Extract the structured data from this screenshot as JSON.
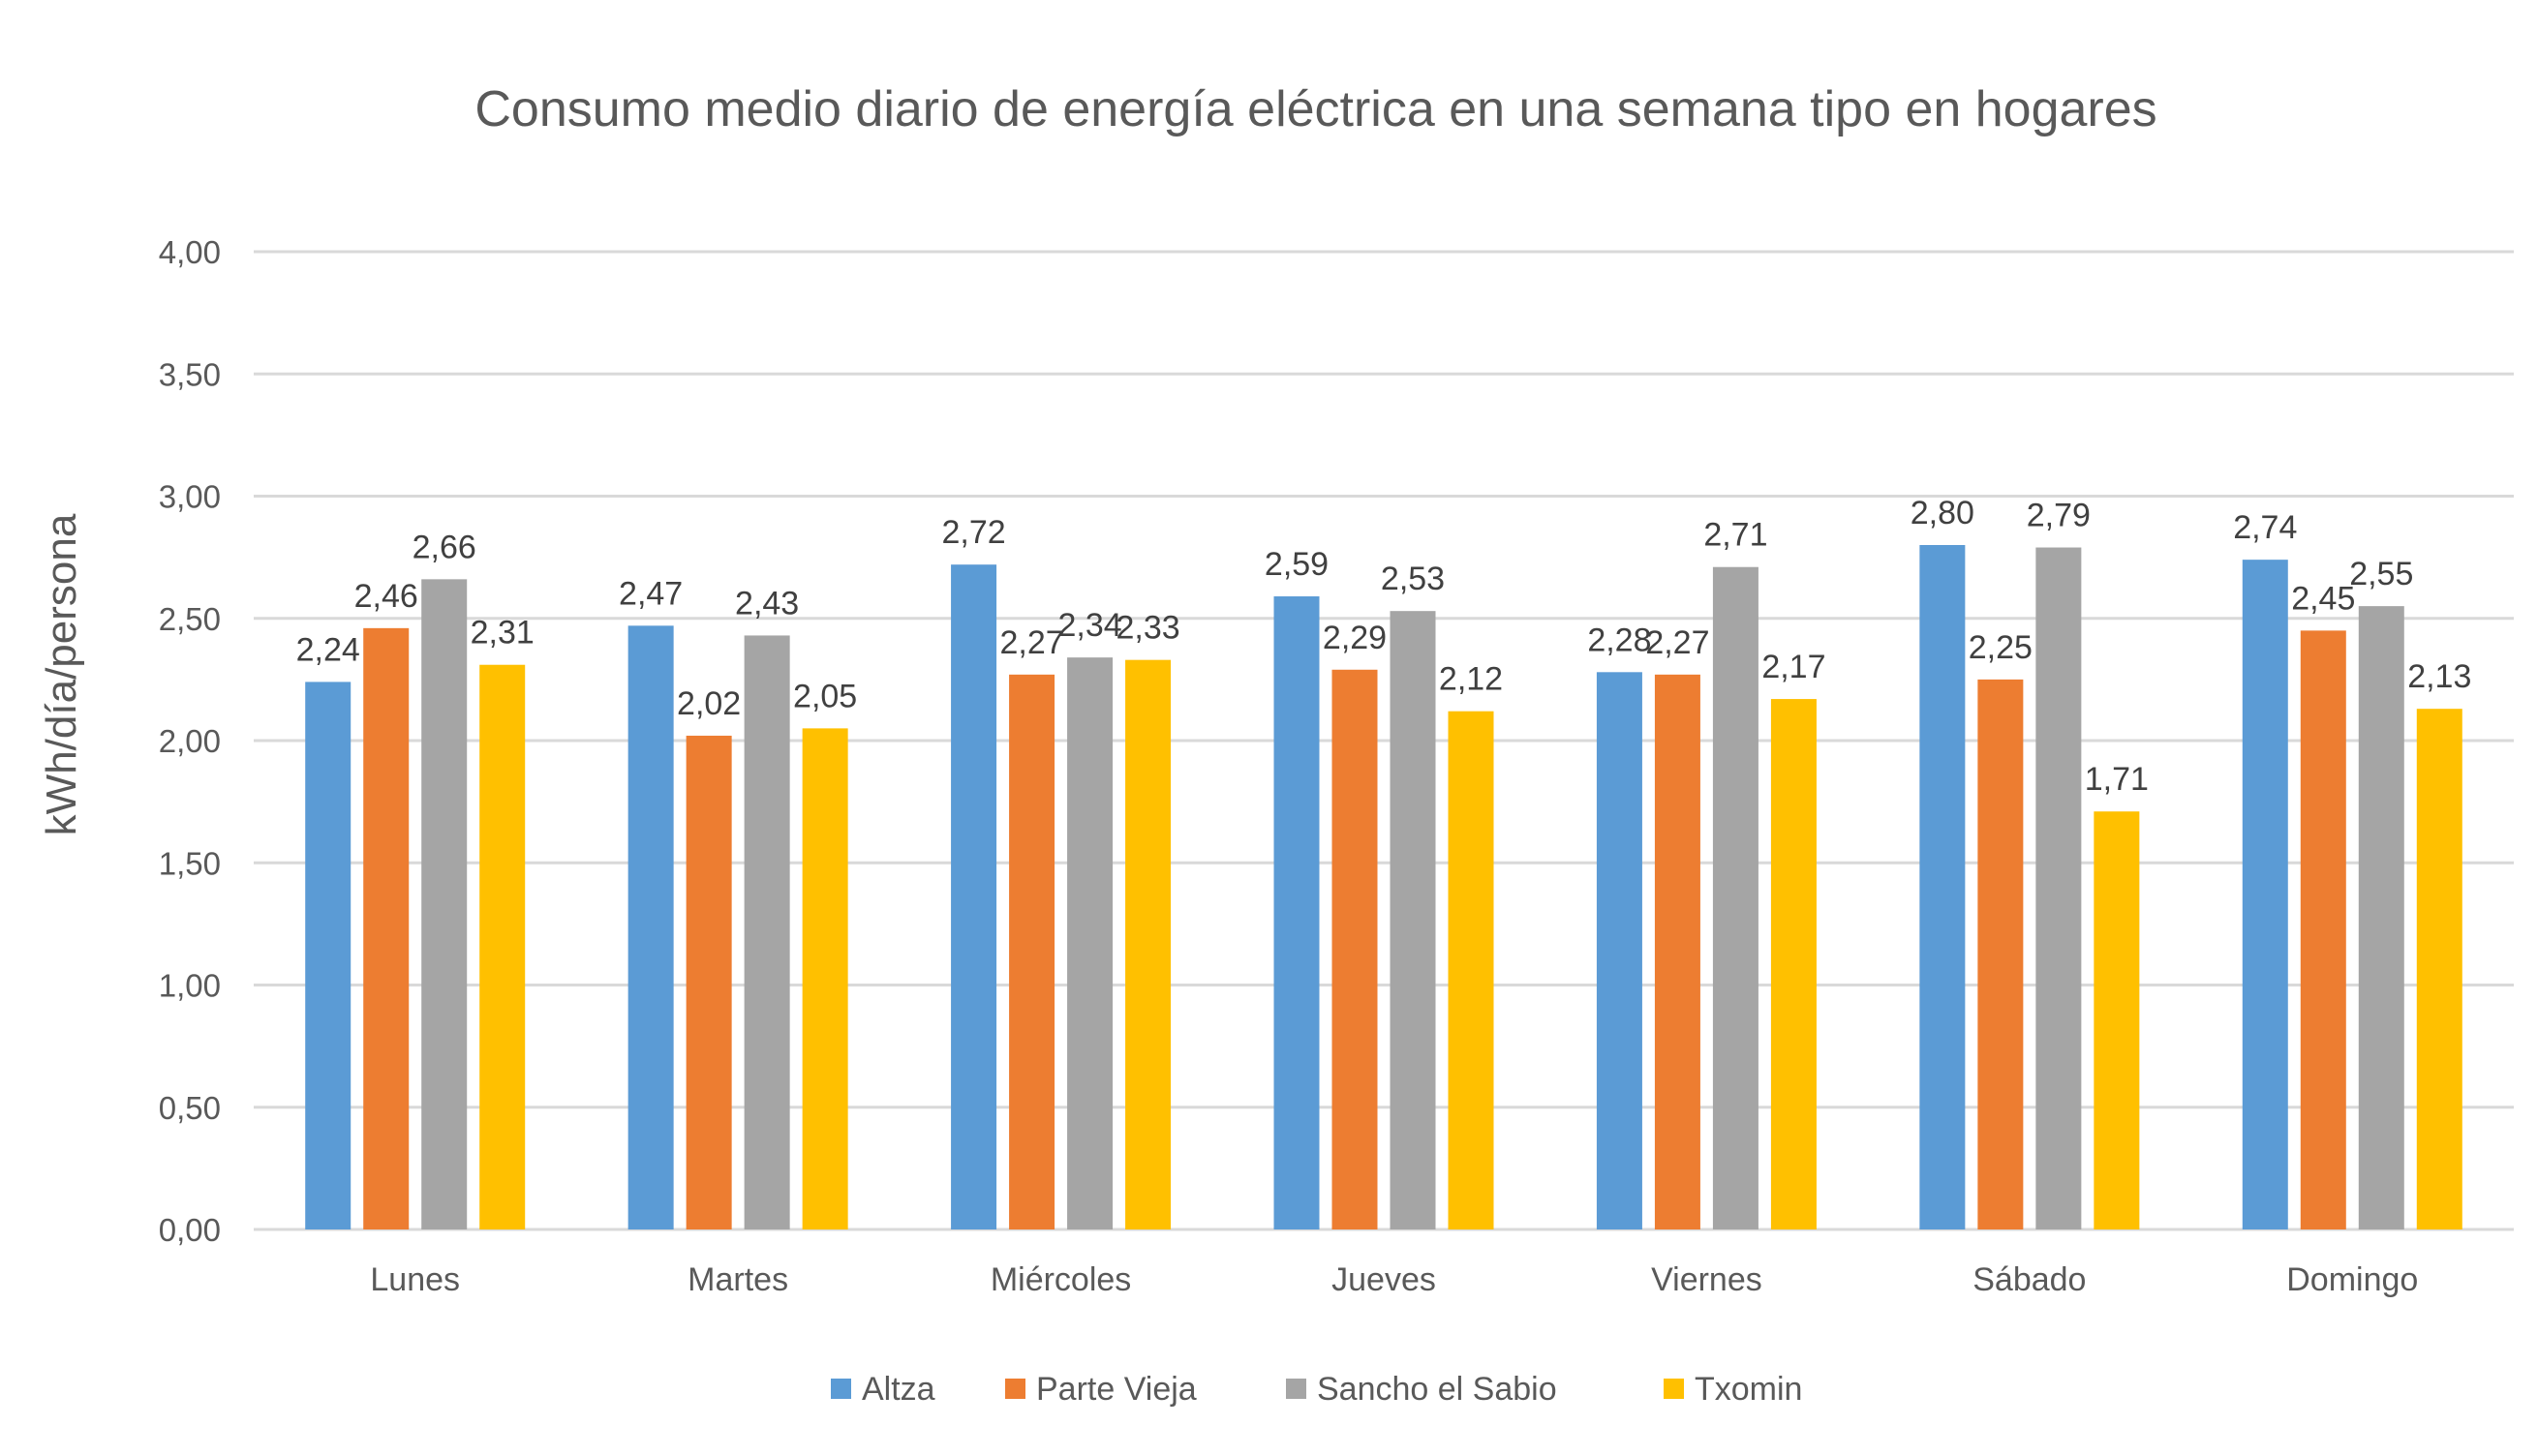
{
  "chart_data": {
    "type": "bar",
    "title": "Consumo medio diario de energía eléctrica en una semana tipo en hogares",
    "xlabel": "",
    "ylabel": "kWh/día/persona",
    "ylim": [
      0,
      4
    ],
    "yticks": [
      "0,00",
      "0,50",
      "1,00",
      "1,50",
      "2,00",
      "2,50",
      "3,00",
      "3,50",
      "4,00"
    ],
    "grid": true,
    "legend_position": "bottom",
    "categories": [
      "Lunes",
      "Martes",
      "Miércoles",
      "Jueves",
      "Viernes",
      "Sábado",
      "Domingo"
    ],
    "series": [
      {
        "name": "Altza",
        "color": "#5B9BD5",
        "values": [
          2.24,
          2.47,
          2.72,
          2.59,
          2.28,
          2.8,
          2.74
        ],
        "labels": [
          "2,24",
          "2,47",
          "2,72",
          "2,59",
          "2,28",
          "2,80",
          "2,74"
        ]
      },
      {
        "name": "Parte Vieja",
        "color": "#ED7D31",
        "values": [
          2.46,
          2.02,
          2.27,
          2.29,
          2.27,
          2.25,
          2.45
        ],
        "labels": [
          "2,46",
          "2,02",
          "2,27",
          "2,29",
          "2,27",
          "2,25",
          "2,45"
        ]
      },
      {
        "name": "Sancho el Sabio",
        "color": "#A5A5A5",
        "values": [
          2.66,
          2.43,
          2.34,
          2.53,
          2.71,
          2.79,
          2.55
        ],
        "labels": [
          "2,66",
          "2,43",
          "2,34",
          "2,53",
          "2,71",
          "2,79",
          "2,55"
        ]
      },
      {
        "name": "Txomin",
        "color": "#FFC000",
        "values": [
          2.31,
          2.05,
          2.33,
          2.12,
          2.17,
          1.71,
          2.13
        ],
        "labels": [
          "2,31",
          "2,05",
          "2,33",
          "2,12",
          "2,17",
          "1,71",
          "2,13"
        ]
      }
    ]
  }
}
